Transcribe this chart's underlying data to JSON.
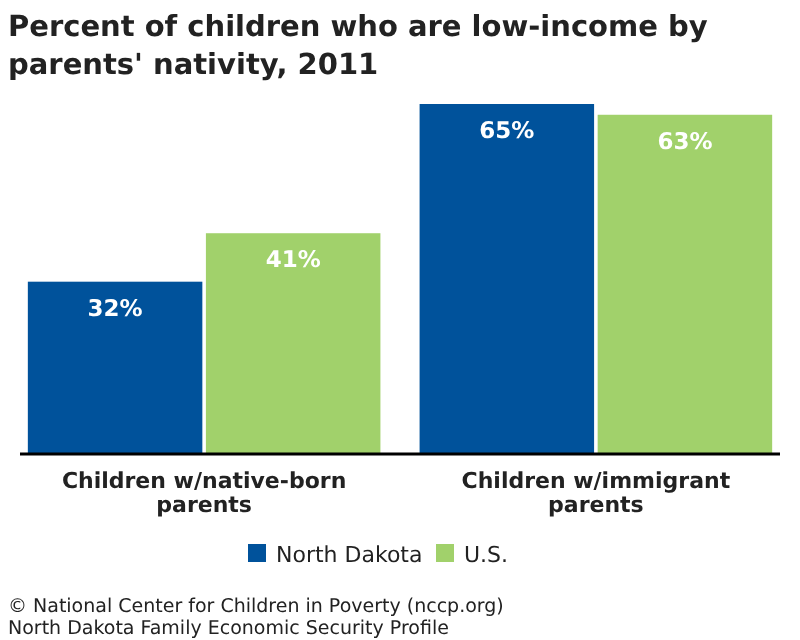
{
  "chart_data": {
    "type": "bar",
    "title": "Percent of children who are low-income by parents' nativity, 2011",
    "categories": [
      "Children w/native-born parents",
      "Children w/immigrant parents"
    ],
    "series": [
      {
        "name": "North Dakota",
        "color": "#00529b",
        "values": [
          32,
          65
        ],
        "value_labels": [
          "32%",
          "65%"
        ]
      },
      {
        "name": "U.S.",
        "color": "#a1d16b",
        "values": [
          41,
          63
        ],
        "value_labels": [
          "41%",
          "63%"
        ]
      }
    ],
    "legend": "bottom",
    "annotations": [
      "© National Center for Children in Poverty (nccp.org)",
      "North Dakota Family Economic Security Profile"
    ]
  }
}
